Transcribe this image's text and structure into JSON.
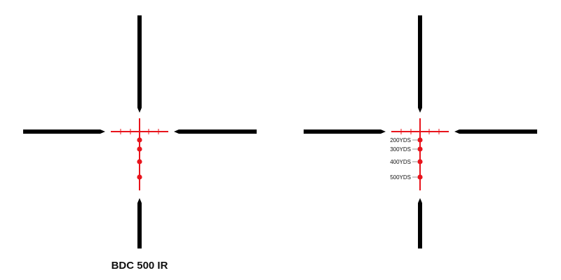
{
  "title": "BDC 500 IR",
  "colors": {
    "posts": "#000000",
    "illuminated": "#e8141c",
    "leader": "#999999",
    "label_text": "#111111"
  },
  "holdover_labels": [
    "200YDS",
    "300YDS",
    "400YDS",
    "500YDS"
  ]
}
